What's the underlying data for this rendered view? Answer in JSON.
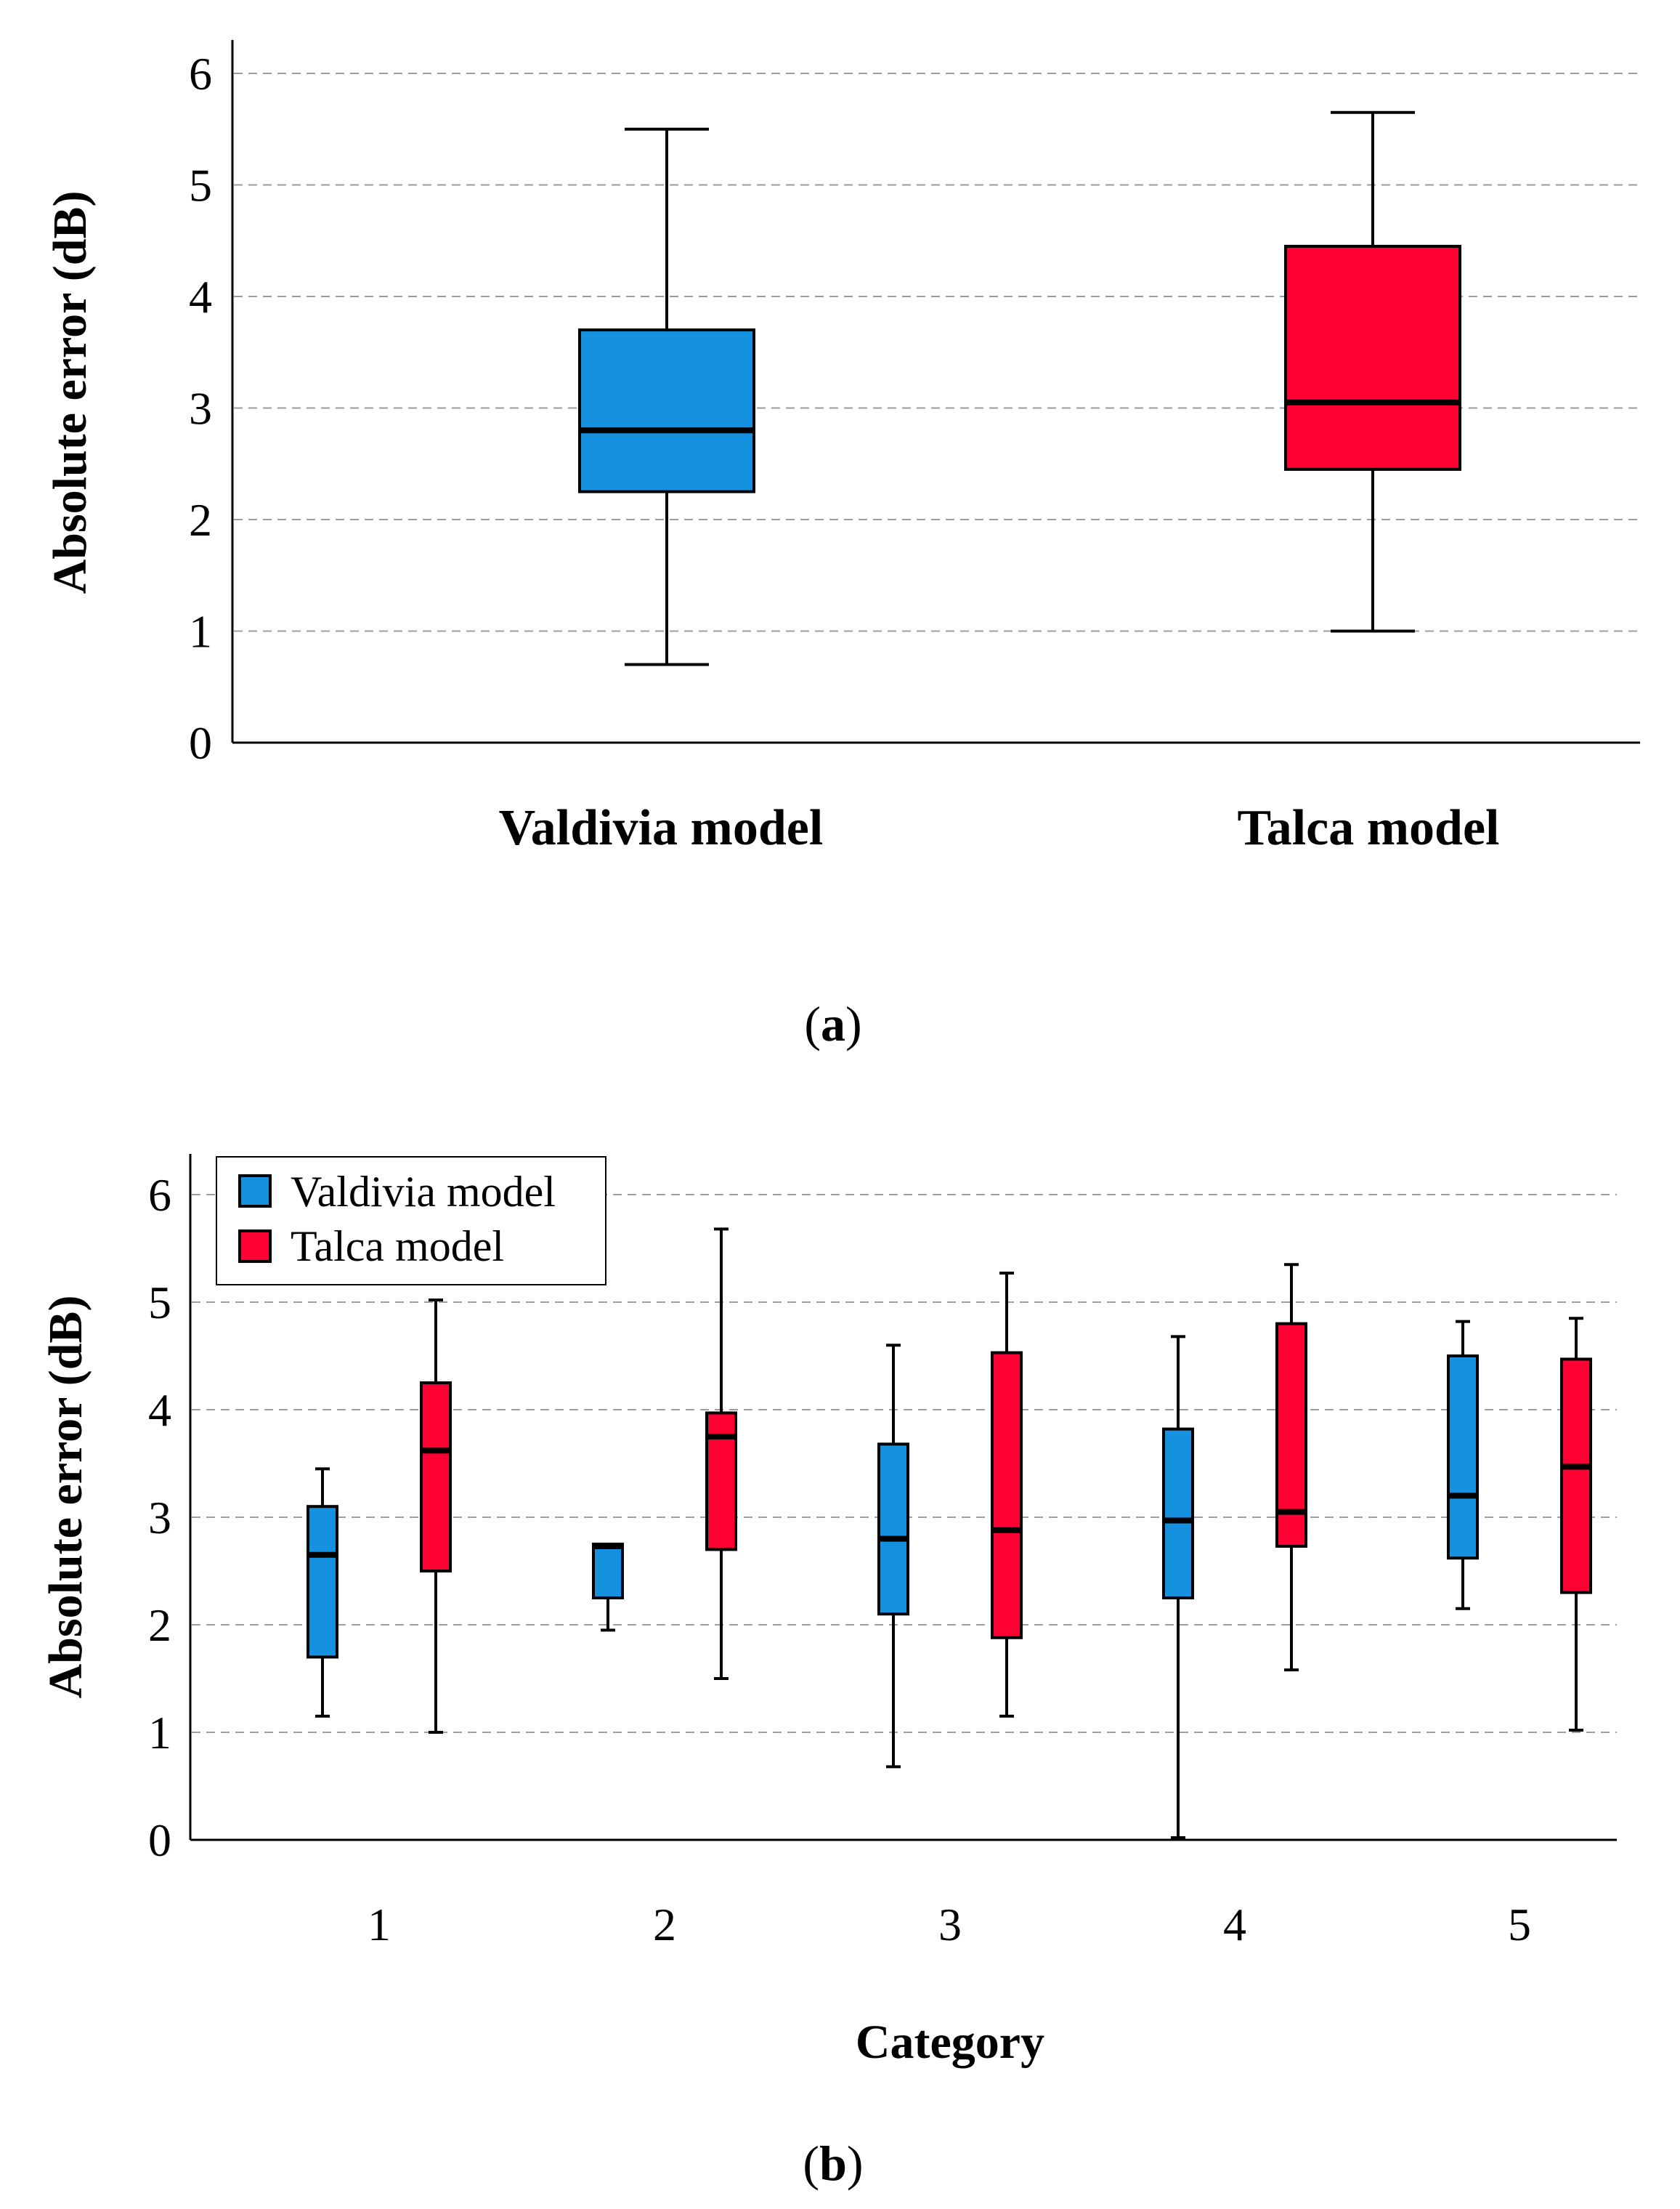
{
  "colors": {
    "valdivia": "#1591e0",
    "talca": "#ff0033"
  },
  "chart_data": [
    {
      "panel_label": "a",
      "type": "boxplot",
      "ylabel": "Absolute error (dB)",
      "ylim": [
        0,
        6
      ],
      "yticks": [
        "0",
        "1",
        "2",
        "3",
        "4",
        "5",
        "6"
      ],
      "grid": true,
      "categories": [
        "Valdivia model",
        "Talca model"
      ],
      "boxes": [
        {
          "category": "Valdivia model",
          "series": "valdivia",
          "whisker_low": 0.7,
          "q1": 2.25,
          "median": 2.8,
          "q3": 3.7,
          "whisker_high": 5.5
        },
        {
          "category": "Talca model",
          "series": "talca",
          "whisker_low": 1.0,
          "q1": 2.45,
          "median": 3.05,
          "q3": 4.45,
          "whisker_high": 5.65
        }
      ]
    },
    {
      "panel_label": "b",
      "type": "boxplot",
      "xlabel": "Category",
      "ylabel": "Absolute error (dB)",
      "ylim": [
        0,
        6
      ],
      "yticks": [
        "0",
        "1",
        "2",
        "3",
        "4",
        "5",
        "6"
      ],
      "grid": true,
      "legend_position": "top-left",
      "categories": [
        "1",
        "2",
        "3",
        "4",
        "5"
      ],
      "series": [
        {
          "name": "Valdivia model",
          "key": "valdivia",
          "boxes": [
            {
              "whisker_low": 1.15,
              "q1": 1.7,
              "median": 2.65,
              "q3": 3.1,
              "whisker_high": 3.45
            },
            {
              "whisker_low": 1.95,
              "q1": 2.25,
              "median": 2.73,
              "q3": 2.75,
              "whisker_high": 2.75
            },
            {
              "whisker_low": 0.68,
              "q1": 2.1,
              "median": 2.8,
              "q3": 3.68,
              "whisker_high": 4.6
            },
            {
              "whisker_low": 0.02,
              "q1": 2.25,
              "median": 2.97,
              "q3": 3.82,
              "whisker_high": 4.68
            },
            {
              "whisker_low": 2.15,
              "q1": 2.62,
              "median": 3.2,
              "q3": 4.5,
              "whisker_high": 4.82
            }
          ]
        },
        {
          "name": "Talca model",
          "key": "talca",
          "boxes": [
            {
              "whisker_low": 1.0,
              "q1": 2.5,
              "median": 3.62,
              "q3": 4.25,
              "whisker_high": 5.02
            },
            {
              "whisker_low": 1.5,
              "q1": 2.7,
              "median": 3.75,
              "q3": 3.97,
              "whisker_high": 5.68
            },
            {
              "whisker_low": 1.15,
              "q1": 1.88,
              "median": 2.88,
              "q3": 4.53,
              "whisker_high": 5.27
            },
            {
              "whisker_low": 1.58,
              "q1": 2.73,
              "median": 3.05,
              "q3": 4.8,
              "whisker_high": 5.35
            },
            {
              "whisker_low": 1.02,
              "q1": 2.3,
              "median": 3.47,
              "q3": 4.47,
              "whisker_high": 4.85
            }
          ]
        }
      ]
    }
  ]
}
